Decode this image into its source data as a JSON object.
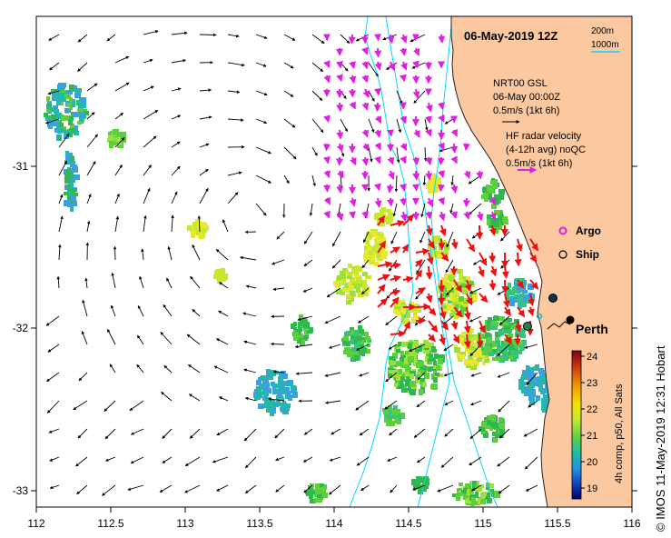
{
  "map": {
    "title": "06-May-2019 12Z",
    "scale": {
      "short": "200m",
      "long": "1000m"
    },
    "x_axis": {
      "ticks": [
        "112",
        "112.5",
        "113",
        "113.5",
        "114",
        "114.5",
        "115",
        "115.5",
        "116"
      ]
    },
    "y_axis": {
      "ticks": [
        "-31",
        "-32",
        "-33"
      ]
    },
    "legend": {
      "model_line1": "NRT00 GSL",
      "model_line2": "06-May 00:00Z",
      "model_line3": "0.5m/s (1kt 6h)",
      "hf_line1": "HF radar velocity",
      "hf_line2": "(4-12h avg) noQC",
      "hf_line3": "0.5m/s (1kt 6h)",
      "argo": "Argo",
      "ship": "Ship"
    },
    "place_label": "Perth",
    "colorbar": {
      "label": "4h comp, p50, All Sats",
      "ticks": [
        "24",
        "23",
        "22",
        "21",
        "20",
        "19"
      ],
      "colors": [
        "#7a0010",
        "#d04010",
        "#f0a000",
        "#f5e000",
        "#c8e830",
        "#60d040",
        "#20c0a0",
        "#2090e0",
        "#1040c0",
        "#000070"
      ]
    },
    "credit": "© IMOS 11-May-2019 12:31 Hobart",
    "colors": {
      "land": "#fbc8a0",
      "coast": "#222222",
      "isobath": "#00d8ff",
      "model_arrow": "#000000",
      "radar_arrow_magenta": "#e020e0",
      "radar_arrow_red": "#ee1010"
    }
  }
}
